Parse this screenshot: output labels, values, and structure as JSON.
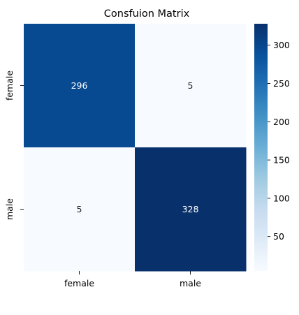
{
  "chart_data": {
    "type": "heatmap",
    "title": "Consfuion Matrix",
    "xlabel": "",
    "ylabel": "",
    "row_labels": [
      "female",
      "male"
    ],
    "col_labels": [
      "female",
      "male"
    ],
    "values": [
      [
        296,
        5
      ],
      [
        5,
        328
      ]
    ],
    "cell_labels": [
      [
        "296",
        "5"
      ],
      [
        "5",
        "328"
      ]
    ],
    "colormap": "Blues",
    "vmin": 5,
    "vmax": 328,
    "colorbar_ticks": [
      50,
      100,
      150,
      200,
      250,
      300
    ],
    "colorbar_tick_labels": [
      "50",
      "100",
      "150",
      "200",
      "250",
      "300"
    ],
    "colors": {
      "low": "#f7fbff",
      "high": "#08306b",
      "text_on_dark": "#ffffff",
      "text_on_light": "#262626"
    }
  }
}
